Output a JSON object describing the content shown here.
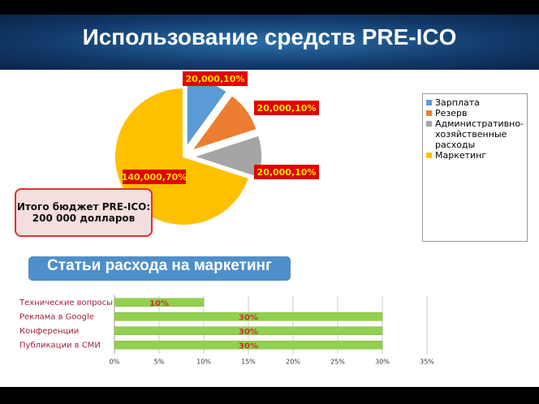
{
  "header": {
    "title": "Использование средств PRE-ICO"
  },
  "budget": {
    "lines": [
      "Итого бюджет PRE-ICO:",
      "200 000  долларов"
    ]
  },
  "section": {
    "title": "Статьи расхода на маркетинг"
  },
  "chart_data": [
    {
      "type": "pie",
      "categories": [
        "Зарплата",
        "Резерв",
        "Административно-хозяйственные расходы",
        "Маркетинг"
      ],
      "values": [
        20000,
        20000,
        20000,
        140000
      ],
      "value_labels": [
        "20,000,10%",
        "20,000,10%",
        "20,000,10%",
        "140,000,70%"
      ],
      "colors": [
        "#5b9bd5",
        "#ed7d31",
        "#a5a5a5",
        "#ffc000"
      ]
    },
    {
      "type": "hbar",
      "categories": [
        "Технические вопросы",
        "Реклама в Google",
        "Конференции",
        "Публикации в СМИ"
      ],
      "values": [
        10,
        30,
        30,
        30
      ],
      "value_labels": [
        "10%",
        "30%",
        "30%",
        "30%"
      ],
      "color": "#92d050",
      "xlim": [
        0,
        35
      ],
      "xticks": [
        {
          "value": 0,
          "label": "0%"
        },
        {
          "value": 5,
          "label": "5%"
        },
        {
          "value": 10,
          "label": "10%"
        },
        {
          "value": 15,
          "label": "15%"
        },
        {
          "value": 20,
          "label": "20%"
        },
        {
          "value": 25,
          "label": "25%"
        },
        {
          "value": 30,
          "label": "30%"
        },
        {
          "value": 35,
          "label": "35%"
        }
      ],
      "grid": true
    }
  ]
}
